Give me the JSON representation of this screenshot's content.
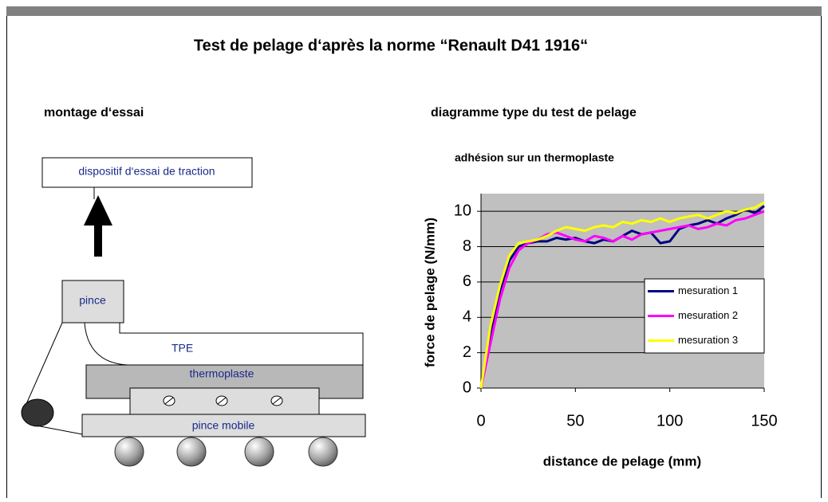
{
  "title": "Test de pelage d‘après la norme “Renault D41 1916“",
  "setup": {
    "heading": "montage d‘essai",
    "labels": {
      "device": "dispositif d‘essai de traction",
      "clamp": "pince",
      "tpe": "TPE",
      "thermoplastic": "thermoplaste",
      "mobile_clamp": "pince mobile"
    }
  },
  "chart_data": {
    "type": "line",
    "heading": "diagramme type du test de pelage",
    "title": "adhésion sur un thermoplaste",
    "x_label": "distance de pelage (mm)",
    "y_label": "force de pelage (N/mm)",
    "x": [
      0,
      5,
      10,
      15,
      20,
      25,
      30,
      35,
      40,
      45,
      50,
      55,
      60,
      65,
      70,
      75,
      80,
      85,
      90,
      95,
      100,
      105,
      110,
      115,
      120,
      125,
      130,
      135,
      140,
      145,
      150
    ],
    "series": [
      {
        "name": "mesuration 1",
        "color": "#000080",
        "values": [
          0,
          3,
          5.5,
          7.2,
          8,
          8.2,
          8.3,
          8.3,
          8.5,
          8.4,
          8.5,
          8.3,
          8.2,
          8.4,
          8.3,
          8.6,
          8.9,
          8.7,
          8.8,
          8.2,
          8.3,
          9,
          9.2,
          9.3,
          9.5,
          9.3,
          9.6,
          9.8,
          10.1,
          9.9,
          10.3
        ]
      },
      {
        "name": "mesuration 2",
        "color": "#ff00ff",
        "values": [
          0,
          2.5,
          5,
          6.8,
          7.8,
          8.2,
          8.4,
          8.7,
          8.8,
          8.6,
          8.4,
          8.3,
          8.6,
          8.5,
          8.3,
          8.6,
          8.4,
          8.7,
          8.8,
          8.9,
          9,
          9.1,
          9.2,
          9,
          9.1,
          9.3,
          9.2,
          9.5,
          9.6,
          9.8,
          10
        ]
      },
      {
        "name": "mesuration 3",
        "color": "#ffff00",
        "values": [
          0,
          3.5,
          5.8,
          7.5,
          8.2,
          8.3,
          8.4,
          8.6,
          8.9,
          9.1,
          9,
          8.9,
          9.1,
          9.2,
          9.1,
          9.4,
          9.3,
          9.5,
          9.4,
          9.6,
          9.4,
          9.6,
          9.7,
          9.8,
          9.6,
          9.8,
          10,
          9.9,
          10.1,
          10.2,
          10.5
        ]
      }
    ],
    "xlim": [
      0,
      150
    ],
    "ylim": [
      0,
      11
    ],
    "xticks": [
      0,
      50,
      100,
      150
    ],
    "yticks": [
      0,
      2,
      4,
      6,
      8,
      10
    ],
    "grid": true,
    "legend": "right"
  }
}
